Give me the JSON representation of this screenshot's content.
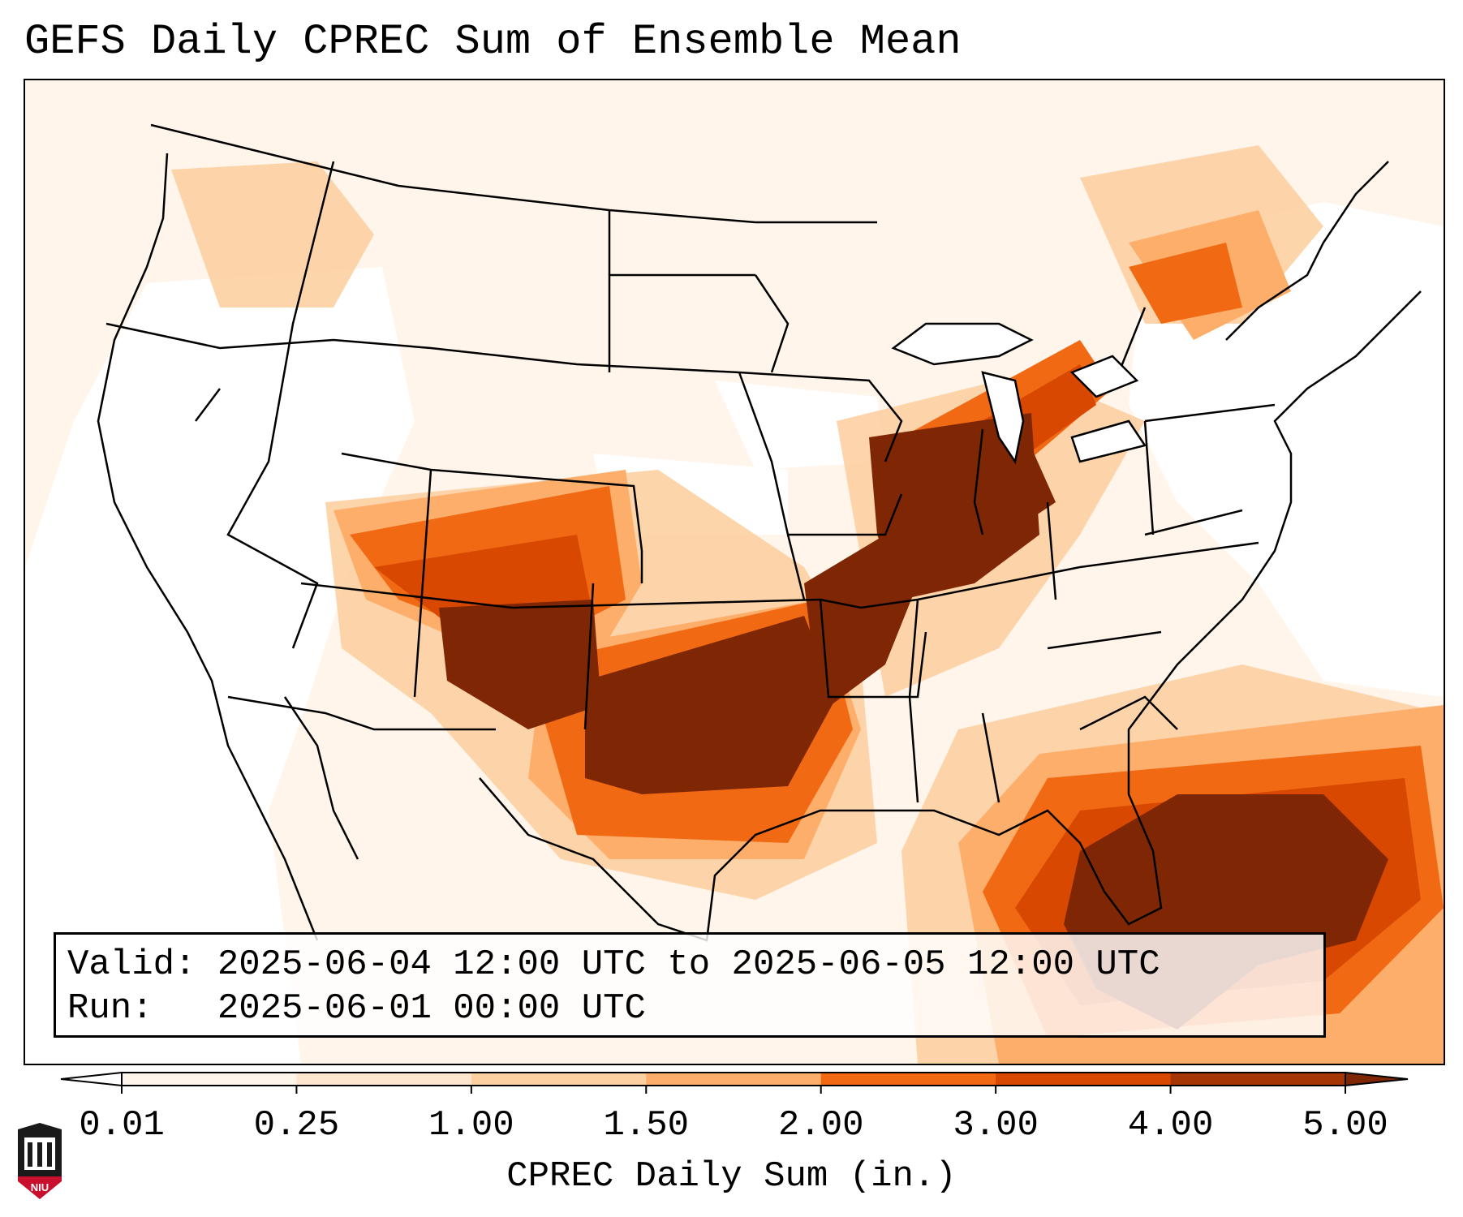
{
  "title": "GEFS Daily CPREC Sum of Ensemble Mean",
  "info": {
    "valid": "Valid: 2025-06-04 12:00 UTC to 2025-06-05 12:00 UTC",
    "run": "Run:   2025-06-01 00:00 UTC"
  },
  "colorbar": {
    "label": "CPREC Daily Sum (in.)",
    "ticks": [
      "0.01",
      "0.25",
      "1.00",
      "1.50",
      "2.00",
      "3.00",
      "4.00",
      "5.00"
    ],
    "colors": [
      "#fff5eb",
      "#fee6ce",
      "#fdd0a2",
      "#fdae6b",
      "#f16913",
      "#d94801",
      "#a63603"
    ],
    "under_color": "#ffffff",
    "over_color": "#7f2704"
  },
  "logo": {
    "text": "NIU"
  }
}
